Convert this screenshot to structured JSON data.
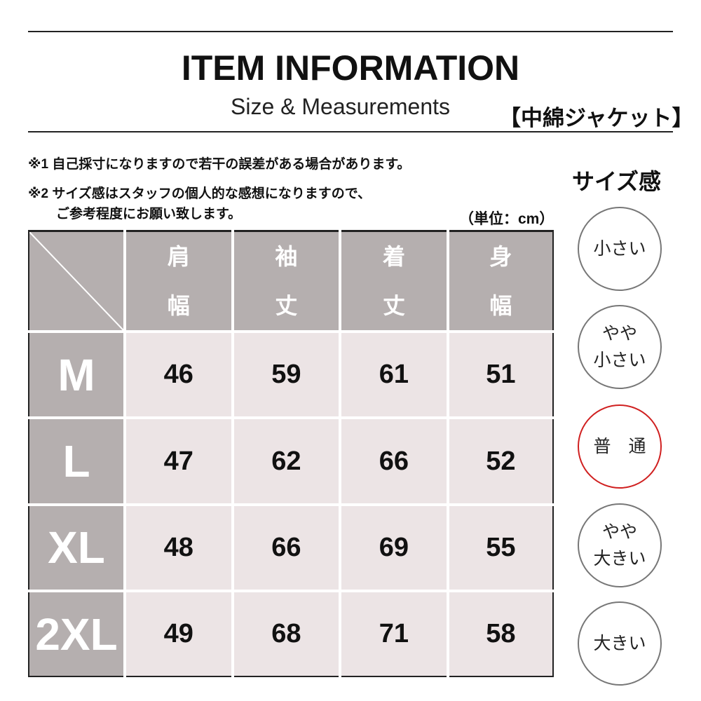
{
  "header": {
    "title": "ITEM INFORMATION",
    "subtitle": "Size & Measurements",
    "product": "【中綿ジャケット】"
  },
  "notes": {
    "note1": "※1 自己採寸になりますので若干の誤差がある場合があります。",
    "note2_line1": "※2 サイズ感はスタッフの個人的な感想になりますので、",
    "note2_line2": "ご参考程度にお願い致します。",
    "unit": "（単位：cm）"
  },
  "table": {
    "columns": [
      {
        "line1": "肩",
        "line2": "幅"
      },
      {
        "line1": "袖",
        "line2": "丈"
      },
      {
        "line1": "着",
        "line2": "丈"
      },
      {
        "line1": "身",
        "line2": "幅"
      }
    ],
    "rows": [
      {
        "size": "M",
        "values": [
          "46",
          "59",
          "61",
          "51"
        ]
      },
      {
        "size": "L",
        "values": [
          "47",
          "62",
          "66",
          "52"
        ]
      },
      {
        "size": "XL",
        "values": [
          "48",
          "66",
          "69",
          "55"
        ]
      },
      {
        "size": "2XL",
        "values": [
          "49",
          "68",
          "71",
          "58"
        ]
      }
    ]
  },
  "size_feel": {
    "title": "サイズ感",
    "options": [
      {
        "line1": "小さい",
        "line2": ""
      },
      {
        "line1": "やや",
        "line2": "小さい"
      },
      {
        "line1": "普　通",
        "line2": ""
      },
      {
        "line1": "やや",
        "line2": "大きい"
      },
      {
        "line1": "大きい",
        "line2": ""
      }
    ],
    "selected": "普　通",
    "selected_color": "#d02020"
  },
  "colors": {
    "header_bg": "#b5afaf",
    "cell_bg": "#ece4e5"
  }
}
